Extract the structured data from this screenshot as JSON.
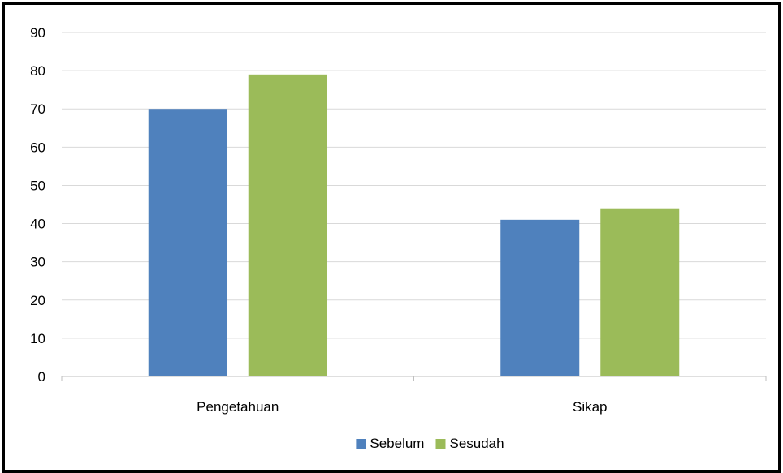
{
  "chart_data": {
    "type": "bar",
    "categories": [
      "Pengetahuan",
      "Sikap"
    ],
    "series": [
      {
        "name": "Sebelum",
        "values": [
          70,
          41
        ],
        "color": "#4f81bd"
      },
      {
        "name": "Sesudah",
        "values": [
          79,
          44
        ],
        "color": "#9bbb59"
      }
    ],
    "ylim": [
      0,
      90
    ],
    "yticks": [
      0,
      10,
      20,
      30,
      40,
      50,
      60,
      70,
      80,
      90
    ],
    "grid": true,
    "legend_position": "bottom",
    "title": "",
    "xlabel": "",
    "ylabel": ""
  }
}
